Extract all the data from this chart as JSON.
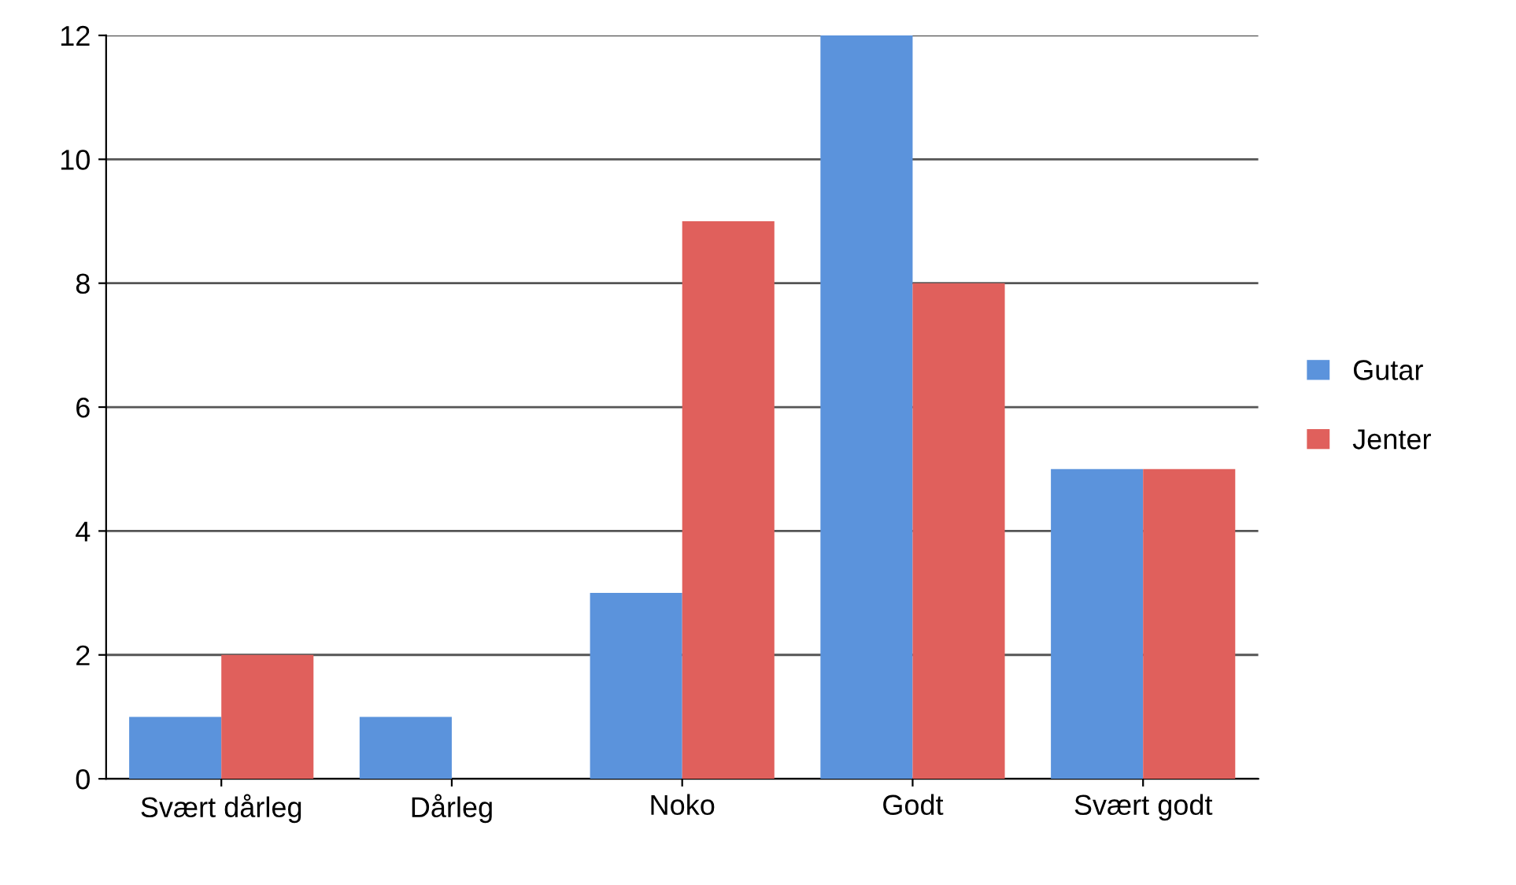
{
  "chart_data": {
    "type": "bar",
    "categories": [
      "Svært dårleg",
      "Dårleg",
      "Noko",
      "Godt",
      "Svært godt"
    ],
    "series": [
      {
        "name": "Gutar",
        "color": "#5b93dc",
        "values": [
          1,
          1,
          3,
          12,
          5
        ]
      },
      {
        "name": "Jenter",
        "color": "#e0605c",
        "values": [
          2,
          0,
          9,
          8,
          5
        ]
      }
    ],
    "ylim": [
      0,
      12
    ],
    "yticks": [
      0,
      2,
      4,
      6,
      8,
      10,
      12
    ],
    "grid": "y",
    "legend": "right"
  }
}
